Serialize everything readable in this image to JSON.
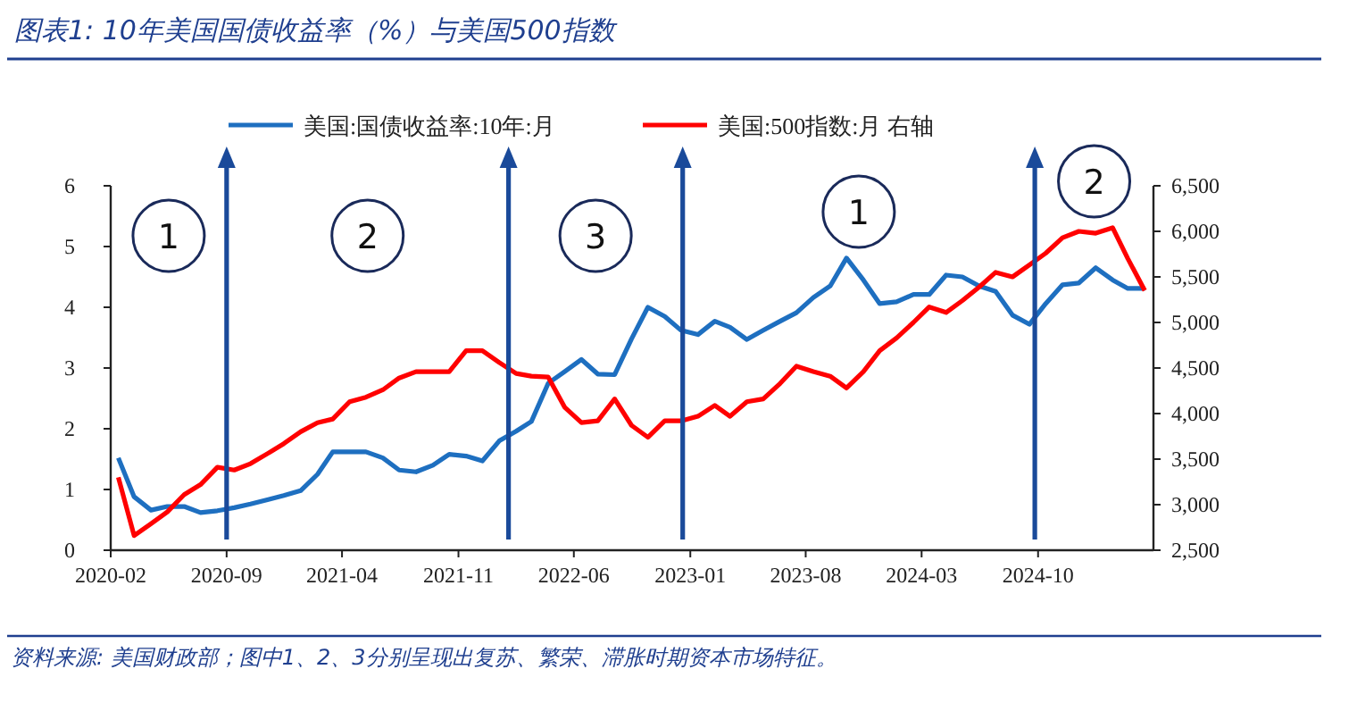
{
  "chart_data": {
    "type": "line",
    "title": "图表1: 10年美国国债收益率（%）与美国500指数",
    "x": [
      "2020-02-15",
      "2020-03-15",
      "2020-04-15",
      "2020-05-15",
      "2020-06-15",
      "2020-07-15",
      "2020-08-15",
      "2020-09-15",
      "2020-10-15",
      "2020-11-15",
      "2020-12-15",
      "2021-01-15",
      "2021-02-15",
      "2021-03-15",
      "2021-04-15",
      "2021-05-15",
      "2021-06-15",
      "2021-07-15",
      "2021-08-15",
      "2021-09-15",
      "2021-10-15",
      "2021-11-15",
      "2021-12-15",
      "2022-01-15",
      "2022-02-15",
      "2022-03-15",
      "2022-04-15",
      "2022-05-15",
      "2022-06-15",
      "2022-07-15",
      "2022-08-15",
      "2022-09-15",
      "2022-10-15",
      "2022-11-15",
      "2022-12-15",
      "2023-01-15",
      "2023-02-15",
      "2023-03-15",
      "2023-04-15",
      "2023-05-15",
      "2023-06-15",
      "2023-07-15",
      "2023-08-15",
      "2023-09-15",
      "2023-10-15",
      "2023-11-15",
      "2023-12-15",
      "2024-01-15",
      "2024-02-15",
      "2024-03-15",
      "2024-04-15",
      "2024-05-15",
      "2024-06-15",
      "2024-07-15",
      "2024-08-15",
      "2024-09-15",
      "2024-10-15",
      "2024-11-15",
      "2024-12-15",
      "2025-01-15",
      "2025-02-15",
      "2025-03-15",
      "2025-04-15"
    ],
    "series": [
      {
        "name": "美国:国债收益率:10年:月",
        "color": "#1e6fc0",
        "values": [
          1.52,
          0.88,
          0.66,
          0.72,
          0.72,
          0.62,
          0.65,
          0.7,
          0.76,
          0.83,
          0.9,
          0.98,
          1.25,
          1.62,
          1.62,
          1.62,
          1.52,
          1.32,
          1.29,
          1.4,
          1.58,
          1.55,
          1.47,
          1.8,
          1.96,
          2.12,
          2.75,
          2.94,
          3.14,
          2.9,
          2.89,
          3.48,
          4.0,
          3.85,
          3.62,
          3.55,
          3.77,
          3.67,
          3.47,
          3.62,
          3.77,
          3.91,
          4.16,
          4.35,
          4.81,
          4.45,
          4.06,
          4.09,
          4.21,
          4.21,
          4.53,
          4.5,
          4.35,
          4.26,
          3.87,
          3.72,
          4.06,
          4.37,
          4.4,
          4.65,
          4.45,
          4.31,
          4.31
        ]
      },
      {
        "name": "美国:500指数:月 右轴",
        "color": "#ff0000",
        "axis": "y2",
        "values": [
          3300,
          2660,
          2790,
          2920,
          3110,
          3220,
          3410,
          3380,
          3450,
          3560,
          3670,
          3800,
          3900,
          3940,
          4130,
          4180,
          4260,
          4390,
          4460,
          4460,
          4460,
          4690,
          4690,
          4560,
          4440,
          4410,
          4400,
          4070,
          3900,
          3920,
          4160,
          3870,
          3740,
          3920,
          3920,
          3970,
          4090,
          3970,
          4130,
          4160,
          4330,
          4520,
          4460,
          4410,
          4280,
          4460,
          4690,
          4830,
          5000,
          5170,
          5110,
          5240,
          5390,
          5550,
          5500,
          5630,
          5760,
          5930,
          6000,
          5980,
          6040,
          5700,
          5350
        ]
      }
    ],
    "xlim": [
      "2020-02",
      "2025-05"
    ],
    "xticks": [
      "2020-02",
      "2020-09",
      "2021-04",
      "2021-11",
      "2022-06",
      "2023-01",
      "2023-08",
      "2024-03",
      "2024-10"
    ],
    "ylim": [
      0,
      6
    ],
    "yticks": [
      0,
      1,
      2,
      3,
      4,
      5,
      6
    ],
    "y2lim": [
      2500,
      6500
    ],
    "y2ticks": [
      {
        "value": 2500,
        "label": "2,500"
      },
      {
        "value": 3000,
        "label": "3,000"
      },
      {
        "value": 3500,
        "label": "3,500"
      },
      {
        "value": 4000,
        "label": "4,000"
      },
      {
        "value": 4500,
        "label": "4,500"
      },
      {
        "value": 5000,
        "label": "5,000"
      },
      {
        "value": 5500,
        "label": "5,500"
      },
      {
        "value": 6000,
        "label": "6,000"
      },
      {
        "value": 6500,
        "label": "6,500"
      }
    ],
    "ref_lines": [
      {
        "axis": "x",
        "value": "2020-09",
        "label": null,
        "color": "#1a4a9a"
      },
      {
        "axis": "x",
        "value": "2022-02",
        "label": null,
        "color": "#1a4a9a"
      },
      {
        "axis": "x",
        "value": "2022-12-18",
        "label": null,
        "color": "#1a4a9a"
      },
      {
        "axis": "x",
        "value": "2024-09-25",
        "label": null,
        "color": "#1a4a9a"
      }
    ],
    "annotations": [
      "1",
      "2",
      "3",
      "1",
      "2",
      "资料来源: 美国财政部；图中1、2、3分别呈现出复苏、繁荣、滞胀时期资本市场特征。"
    ],
    "legend": "top",
    "grid": false,
    "marker": "none",
    "line_style": "solid"
  }
}
